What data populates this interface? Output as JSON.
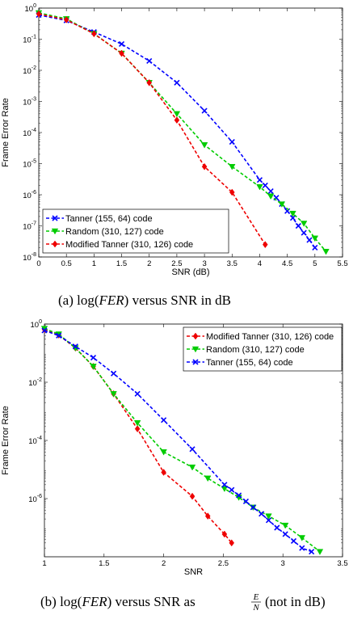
{
  "chart_data": [
    {
      "type": "line",
      "xlabel": "SNR (dB)",
      "ylabel": "Frame Error Rate",
      "xlim": [
        0,
        5.5
      ],
      "ylim": [
        1e-08,
        1
      ],
      "yscale": "log",
      "xticks": [
        0,
        0.5,
        1,
        1.5,
        2,
        2.5,
        3,
        3.5,
        4,
        4.5,
        5,
        5.5
      ],
      "xtick_labels": [
        "0",
        "0.5",
        "1",
        "1.5",
        "2",
        "2.5",
        "3",
        "3.5",
        "4",
        "4.5",
        "5",
        "5.5"
      ],
      "yticks": [
        -8,
        -7,
        -6,
        -5,
        -4,
        -3,
        -2,
        -1,
        0
      ],
      "ytick_mantissa": "10",
      "legend_position": "bottom-left",
      "grid": false,
      "caption": {
        "prefix": "(a) log(",
        "var": "FER",
        "suffix": ") versus SNR in dB"
      },
      "series": [
        {
          "name": "Tanner (155, 64) code",
          "color": "#0000ff",
          "marker": "x",
          "x": [
            0,
            0.5,
            1,
            1.5,
            2,
            2.5,
            3,
            3.5,
            4,
            4.1,
            4.2,
            4.3,
            4.4,
            4.5,
            4.6,
            4.7,
            4.8,
            4.9,
            5.0
          ],
          "y": [
            0.6,
            0.4,
            0.17,
            0.07,
            0.02,
            0.004,
            0.0005,
            5e-05,
            3e-06,
            2e-06,
            1.3e-06,
            8e-07,
            5e-07,
            3e-07,
            1.8e-07,
            1e-07,
            6e-08,
            3.5e-08,
            2e-08
          ]
        },
        {
          "name": "Random (310, 127)  code",
          "color": "#00cc00",
          "marker": "v",
          "x": [
            0,
            0.5,
            1,
            1.5,
            2,
            2.5,
            3,
            3.5,
            4,
            4.2,
            4.4,
            4.6,
            4.8,
            5.0,
            5.2
          ],
          "y": [
            0.7,
            0.45,
            0.15,
            0.035,
            0.004,
            0.0004,
            4e-05,
            8e-06,
            1.8e-06,
            9e-07,
            5e-07,
            2.5e-07,
            1.2e-07,
            4e-08,
            1.5e-08
          ]
        },
        {
          "name": "Modified Tanner (310, 126) code",
          "color": "#ee0000",
          "marker": "d",
          "x": [
            0,
            0.5,
            1,
            1.5,
            2,
            2.5,
            3,
            3.5,
            4.1
          ],
          "y": [
            0.65,
            0.42,
            0.15,
            0.035,
            0.004,
            0.00025,
            8e-06,
            1.2e-06,
            2.5e-08
          ]
        }
      ]
    },
    {
      "type": "line",
      "xlabel": "SNR",
      "ylabel": "Frame Error Rate",
      "xlim": [
        1,
        3.5
      ],
      "ylim": [
        1e-08,
        1
      ],
      "yscale": "log",
      "xticks": [
        1,
        1.5,
        2,
        2.5,
        3,
        3.5
      ],
      "xtick_labels": [
        "1",
        "1.5",
        "2",
        "2.5",
        "3",
        "3.5"
      ],
      "yticks": [
        -6,
        -4,
        -2,
        0
      ],
      "ytick_mantissa": "10",
      "legend_position": "top-right",
      "grid": false,
      "caption": {
        "prefix": "(b) log(",
        "var": "FER",
        "suffix": ") versus SNR as",
        "frac_num": "E",
        "frac_den": "N",
        "tail": "(not in dB)"
      },
      "series": [
        {
          "name": "Modified Tanner (310, 126) code",
          "color": "#ee0000",
          "marker": "d",
          "x": [
            1.0,
            1.12,
            1.26,
            1.41,
            1.58,
            1.78,
            2.0,
            2.24,
            2.37,
            2.51,
            2.57
          ],
          "y": [
            0.65,
            0.42,
            0.15,
            0.035,
            0.004,
            0.00025,
            8e-06,
            1.2e-06,
            2.5e-07,
            6e-08,
            3e-08
          ]
        },
        {
          "name": "Random (310, 127) code",
          "color": "#00cc00",
          "marker": "v",
          "x": [
            1.0,
            1.12,
            1.26,
            1.41,
            1.58,
            1.78,
            2.0,
            2.24,
            2.37,
            2.51,
            2.63,
            2.75,
            2.88,
            3.02,
            3.16,
            3.31
          ],
          "y": [
            0.7,
            0.45,
            0.15,
            0.035,
            0.004,
            0.0004,
            4e-05,
            1.2e-05,
            5e-06,
            2.2e-06,
            1.1e-06,
            5e-07,
            2.5e-07,
            1.2e-07,
            4.5e-08,
            1.5e-08
          ]
        },
        {
          "name": "Tanner (155, 64) code",
          "color": "#0000ff",
          "marker": "x",
          "x": [
            1.0,
            1.12,
            1.26,
            1.41,
            1.58,
            1.78,
            2.0,
            2.24,
            2.51,
            2.57,
            2.63,
            2.69,
            2.75,
            2.82,
            2.88,
            2.95,
            3.02,
            3.09,
            3.16,
            3.24
          ],
          "y": [
            0.6,
            0.4,
            0.17,
            0.07,
            0.02,
            0.004,
            0.0005,
            5e-05,
            3e-06,
            2e-06,
            1.3e-06,
            8e-07,
            5e-07,
            3e-07,
            1.8e-07,
            1e-07,
            6e-08,
            3.5e-08,
            2e-08,
            1.5e-08
          ]
        }
      ]
    }
  ]
}
